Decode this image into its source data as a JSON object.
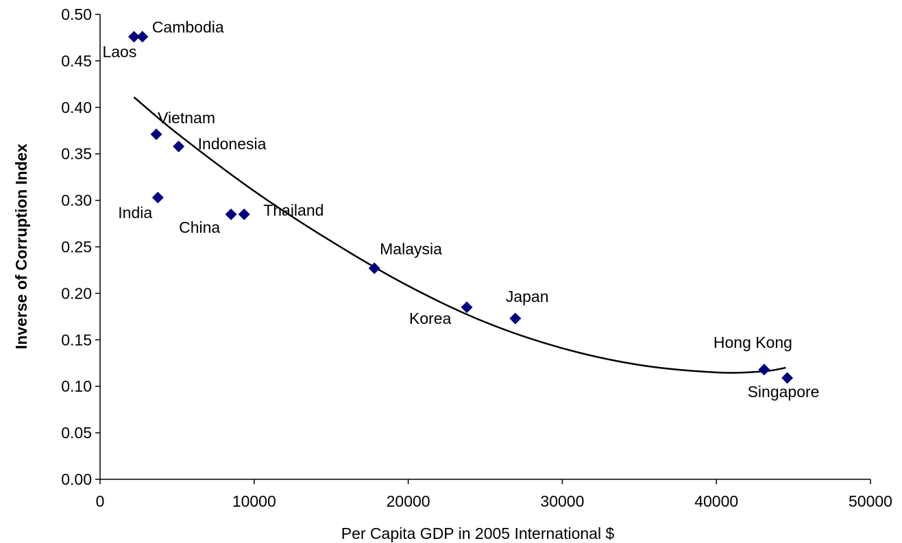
{
  "chart_data": {
    "type": "scatter",
    "title": "",
    "xlabel": "Per Capita GDP in 2005 International $",
    "ylabel": "Inverse of Corruption Index",
    "xlim": [
      0,
      50000
    ],
    "ylim": [
      0.0,
      0.5
    ],
    "x_ticks": [
      "0",
      "10000",
      "20000",
      "30000",
      "40000",
      "50000"
    ],
    "y_ticks": [
      "0.00",
      "0.05",
      "0.10",
      "0.15",
      "0.20",
      "0.25",
      "0.30",
      "0.35",
      "0.40",
      "0.45",
      "0.50"
    ],
    "grid": false,
    "legend": "none",
    "marker": "diamond",
    "marker_color": "#000080",
    "points": [
      {
        "label": "Laos",
        "x": 2200,
        "y": 0.476
      },
      {
        "label": "Cambodia",
        "x": 2750,
        "y": 0.476
      },
      {
        "label": "Vietnam",
        "x": 3650,
        "y": 0.371
      },
      {
        "label": "Indonesia",
        "x": 5100,
        "y": 0.358
      },
      {
        "label": "India",
        "x": 3750,
        "y": 0.303
      },
      {
        "label": "China",
        "x": 8500,
        "y": 0.285
      },
      {
        "label": "Thailand",
        "x": 9350,
        "y": 0.285
      },
      {
        "label": "Malaysia",
        "x": 17800,
        "y": 0.227
      },
      {
        "label": "Korea",
        "x": 23800,
        "y": 0.185
      },
      {
        "label": "Japan",
        "x": 26950,
        "y": 0.173
      },
      {
        "label": "Hong Kong",
        "x": 43100,
        "y": 0.118
      },
      {
        "label": "Singapore",
        "x": 44600,
        "y": 0.109
      }
    ],
    "trendline": {
      "type": "polynomial",
      "x": [
        2200,
        5000,
        10000,
        15000,
        20000,
        25000,
        30000,
        35000,
        40000,
        43000,
        44500
      ],
      "y": [
        0.411,
        0.372,
        0.31,
        0.256,
        0.208,
        0.169,
        0.141,
        0.123,
        0.115,
        0.116,
        0.12
      ]
    }
  }
}
